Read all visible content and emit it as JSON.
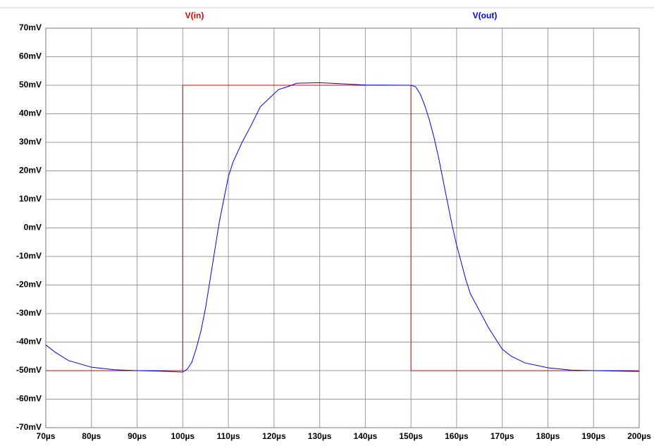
{
  "chart_data": {
    "type": "line",
    "series": [
      {
        "name": "V(in)",
        "color": "#e00000",
        "x": [
          70,
          100,
          100,
          150,
          150,
          200
        ],
        "values": [
          -50,
          -50,
          50,
          50,
          -50,
          -50
        ]
      },
      {
        "name": "V(out)",
        "color": "#0000ee",
        "x": [
          70,
          72,
          75,
          80,
          85,
          90,
          95,
          100,
          101,
          102,
          103,
          104,
          105,
          106,
          107,
          108,
          109,
          110,
          111,
          113,
          115,
          117,
          119,
          121,
          123,
          125,
          130,
          135,
          140,
          150,
          151,
          152,
          153,
          154,
          155,
          156,
          157,
          158,
          159,
          160,
          161,
          162,
          163,
          165,
          167,
          170,
          172,
          175,
          180,
          185,
          190,
          200
        ],
        "values": [
          -41,
          -43.5,
          -46.5,
          -48.8,
          -49.7,
          -50,
          -50.2,
          -50.5,
          -49.5,
          -47,
          -42,
          -36,
          -28,
          -18,
          -8,
          2,
          10,
          18,
          23,
          30,
          36,
          42.5,
          45.5,
          48.5,
          49.5,
          50.7,
          50.9,
          50.5,
          50.1,
          50,
          49.5,
          47,
          43,
          38,
          32,
          25,
          17,
          9,
          1,
          -6,
          -12,
          -18,
          -23,
          -29,
          -35,
          -42.5,
          -45,
          -47.3,
          -49,
          -49.8,
          -50,
          -50.3
        ]
      }
    ],
    "xlim": [
      70,
      200
    ],
    "xticks": [
      {
        "value": 70,
        "label": "70µs"
      },
      {
        "value": 80,
        "label": "80µs"
      },
      {
        "value": 90,
        "label": "90µs"
      },
      {
        "value": 100,
        "label": "100µs"
      },
      {
        "value": 110,
        "label": "110µs"
      },
      {
        "value": 120,
        "label": "120µs"
      },
      {
        "value": 130,
        "label": "130µs"
      },
      {
        "value": 140,
        "label": "140µs"
      },
      {
        "value": 150,
        "label": "150µs"
      },
      {
        "value": 160,
        "label": "160µs"
      },
      {
        "value": 170,
        "label": "170µs"
      },
      {
        "value": 180,
        "label": "180µs"
      },
      {
        "value": 190,
        "label": "190µs"
      },
      {
        "value": 200,
        "label": "200µs"
      }
    ],
    "ylim": [
      -70,
      70
    ],
    "yticks": [
      {
        "value": 70,
        "label": "70mV"
      },
      {
        "value": 60,
        "label": "60mV"
      },
      {
        "value": 50,
        "label": "50mV"
      },
      {
        "value": 40,
        "label": "40mV"
      },
      {
        "value": 30,
        "label": "30mV"
      },
      {
        "value": 20,
        "label": "20mV"
      },
      {
        "value": 10,
        "label": "10mV"
      },
      {
        "value": 0,
        "label": "0mV"
      },
      {
        "value": -10,
        "label": "-10mV"
      },
      {
        "value": -20,
        "label": "-20mV"
      },
      {
        "value": -30,
        "label": "-30mV"
      },
      {
        "value": -40,
        "label": "-40mV"
      },
      {
        "value": -50,
        "label": "-50mV"
      },
      {
        "value": -60,
        "label": "-60mV"
      },
      {
        "value": -70,
        "label": "-70mV"
      }
    ],
    "grid": true
  }
}
